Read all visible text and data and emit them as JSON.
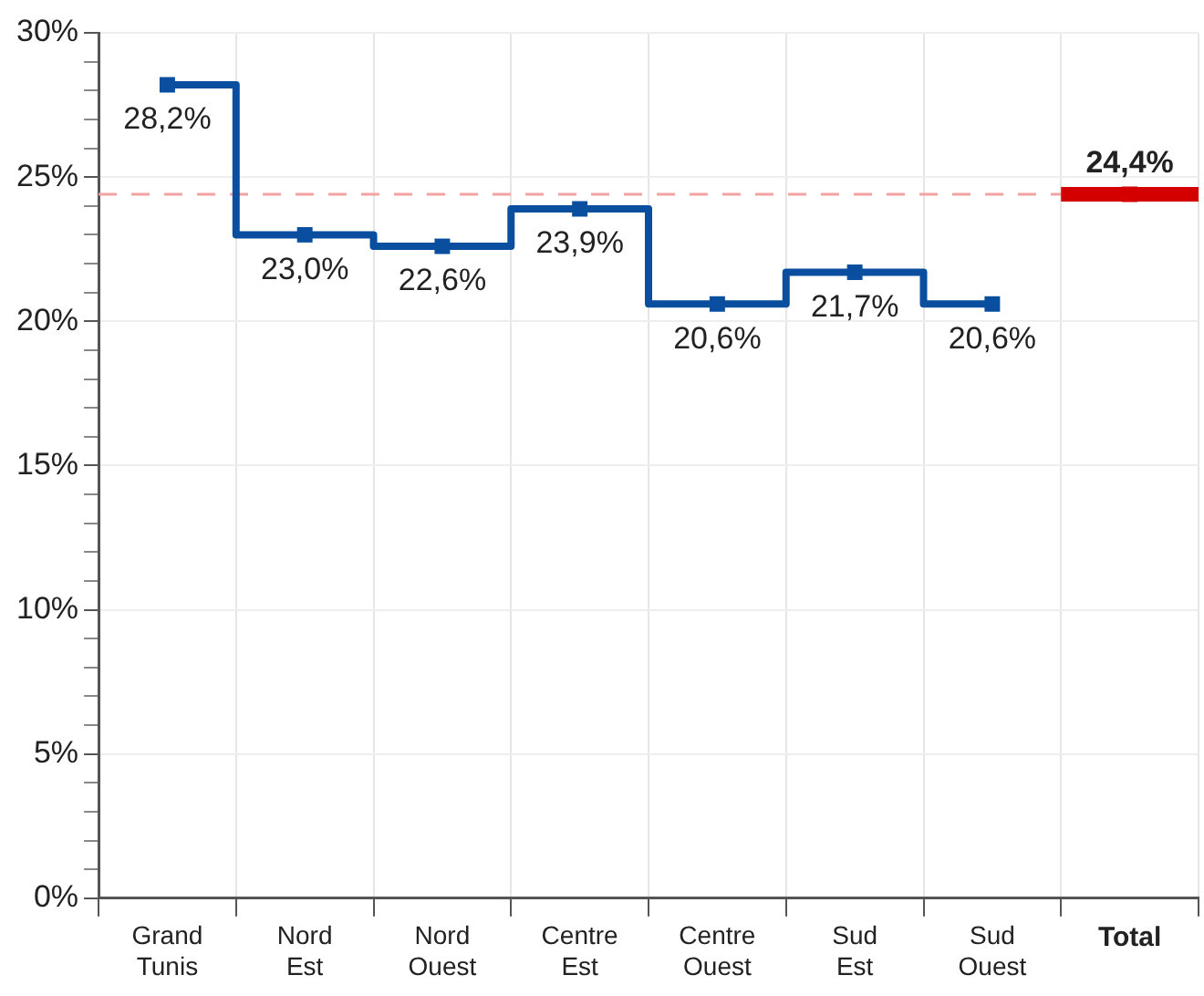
{
  "chart_data": {
    "type": "step",
    "categories": [
      "Grand Tunis",
      "Nord Est",
      "Nord Ouest",
      "Centre Est",
      "Centre Ouest",
      "Sud Est",
      "Sud Ouest",
      "Total"
    ],
    "series": [
      {
        "color": "#0a4f9f",
        "marker": "square",
        "values": [
          28.2,
          23.0,
          22.6,
          23.9,
          20.6,
          21.7,
          20.6,
          null
        ],
        "value_labels": [
          "28,2%",
          "23,0%",
          "22,6%",
          "23,9%",
          "20,6%",
          "21,7%",
          "20,6%",
          null
        ]
      },
      {
        "color": "#d40000",
        "marker": "square",
        "values": [
          null,
          null,
          null,
          null,
          null,
          null,
          null,
          24.4
        ],
        "value_labels": [
          null,
          null,
          null,
          null,
          null,
          null,
          null,
          "24,4%"
        ]
      }
    ],
    "ylim": [
      0,
      30
    ],
    "yticks": [
      {
        "value": 0,
        "label": "0%"
      },
      {
        "value": 1,
        "label": null
      },
      {
        "value": 2,
        "label": null
      },
      {
        "value": 3,
        "label": null
      },
      {
        "value": 4,
        "label": null
      },
      {
        "value": 5,
        "label": "5%"
      },
      {
        "value": 6,
        "label": null
      },
      {
        "value": 7,
        "label": null
      },
      {
        "value": 8,
        "label": null
      },
      {
        "value": 9,
        "label": null
      },
      {
        "value": 10,
        "label": "10%"
      },
      {
        "value": 11,
        "label": null
      },
      {
        "value": 12,
        "label": null
      },
      {
        "value": 13,
        "label": null
      },
      {
        "value": 14,
        "label": null
      },
      {
        "value": 15,
        "label": "15%"
      },
      {
        "value": 16,
        "label": null
      },
      {
        "value": 17,
        "label": null
      },
      {
        "value": 18,
        "label": null
      },
      {
        "value": 19,
        "label": null
      },
      {
        "value": 20,
        "label": "20%"
      },
      {
        "value": 21,
        "label": null
      },
      {
        "value": 22,
        "label": null
      },
      {
        "value": 23,
        "label": null
      },
      {
        "value": 24,
        "label": null
      },
      {
        "value": 25,
        "label": "25%"
      },
      {
        "value": 26,
        "label": null
      },
      {
        "value": 27,
        "label": null
      },
      {
        "value": 28,
        "label": null
      },
      {
        "value": 29,
        "label": null
      },
      {
        "value": 30,
        "label": "30%"
      }
    ],
    "ref_lines": [
      {
        "axis": "y",
        "value": 24.4,
        "color": "#f4a3a3",
        "line_style": "dashed"
      }
    ],
    "grid": true,
    "legend": false
  }
}
